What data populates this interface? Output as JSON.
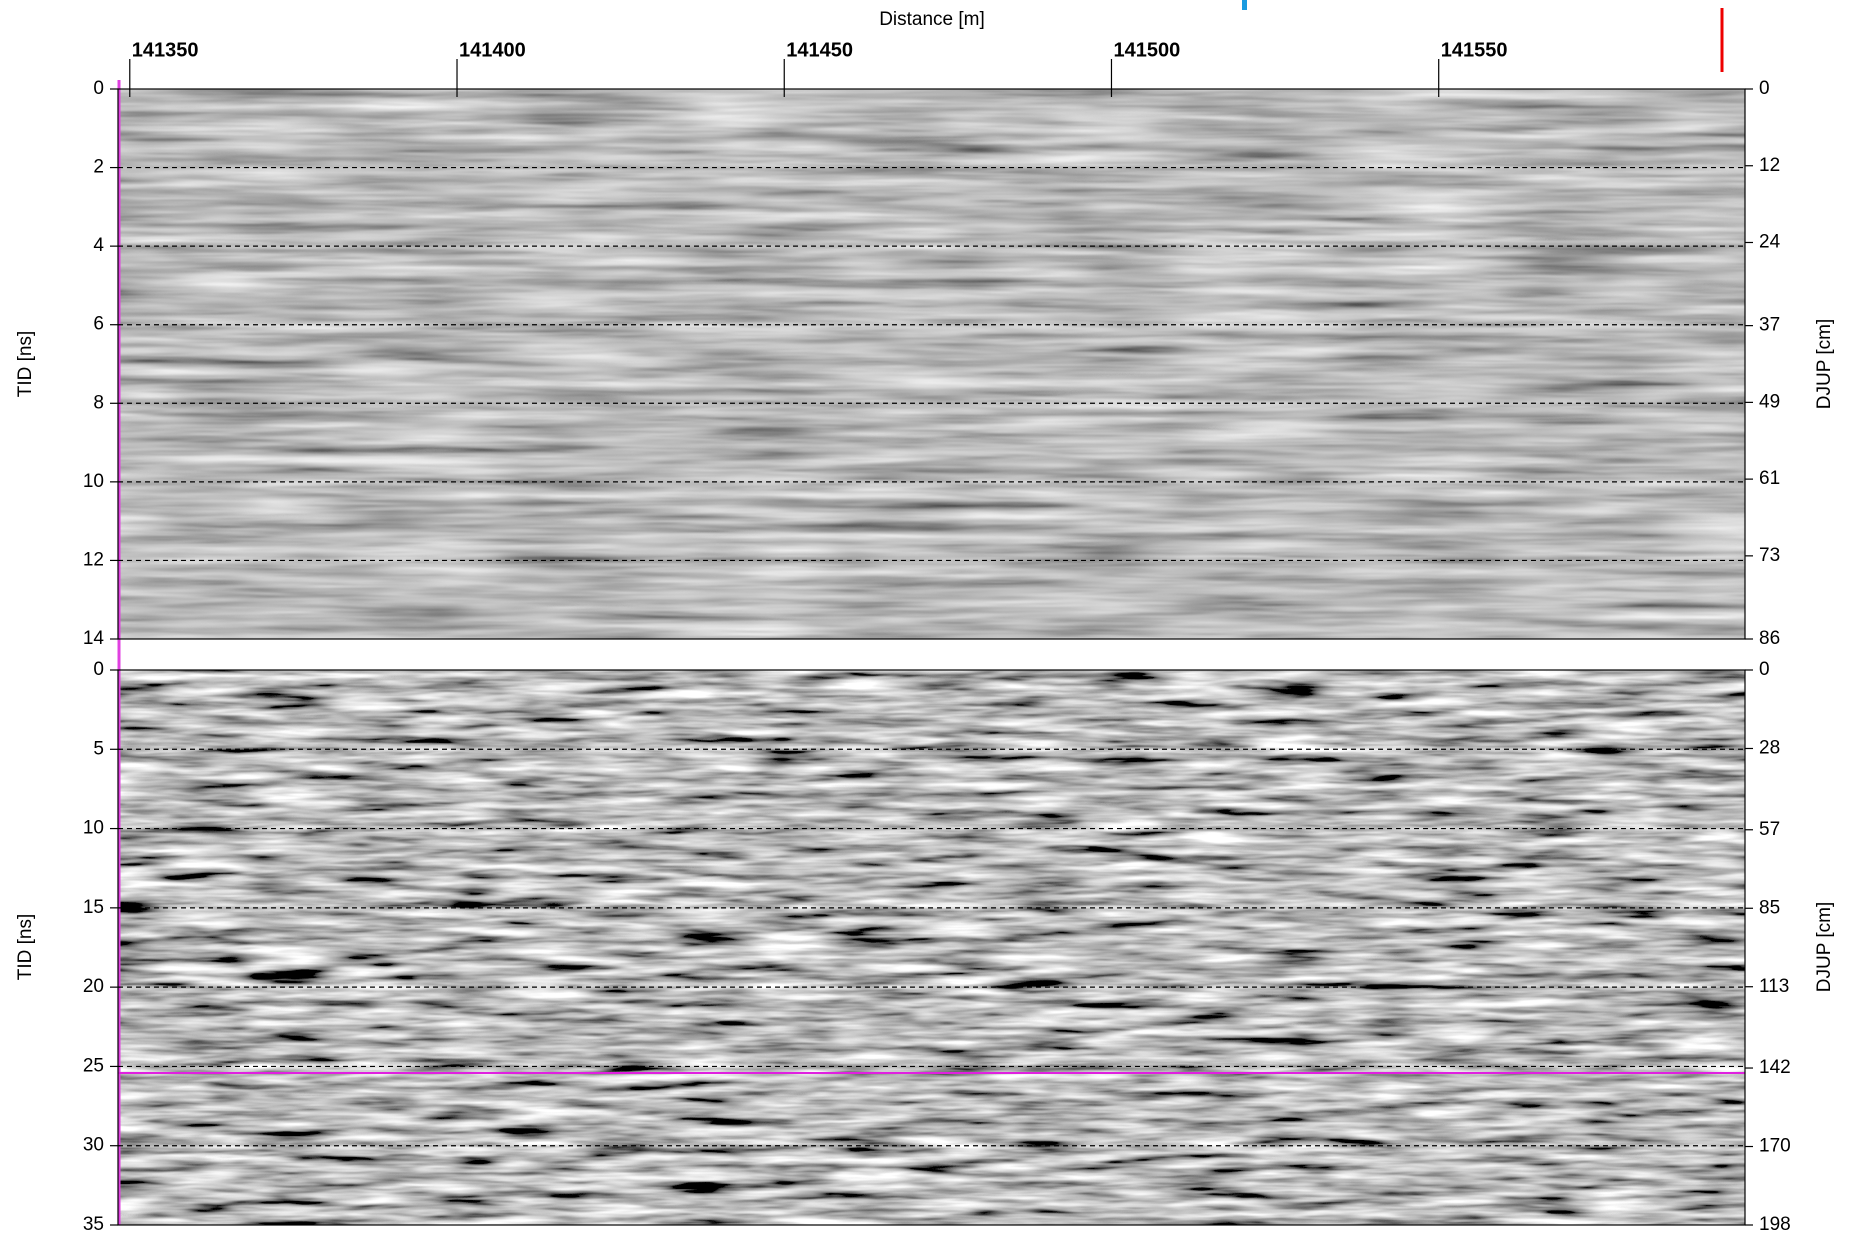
{
  "chart_data": [
    {
      "type": "radargram",
      "xlabel": "Distance [m]",
      "ylabel": "TID [ns]",
      "y2label": "DJUP [cm]",
      "xlim": [
        141348.2,
        141596.8
      ],
      "xticks": [
        141350,
        141400,
        141450,
        141500,
        141550
      ],
      "ylim": [
        0,
        14
      ],
      "yticks": [
        0,
        2,
        4,
        6,
        8,
        10,
        12,
        14
      ],
      "y2lim": [
        0,
        86
      ],
      "y2ticks": [
        0,
        12,
        24,
        37,
        49,
        61,
        73,
        86
      ],
      "grid": true
    },
    {
      "type": "radargram",
      "ylabel": "TID [ns]",
      "y2label": "DJUP [cm]",
      "xlim": [
        141348.2,
        141596.8
      ],
      "ylim": [
        0,
        35
      ],
      "yticks": [
        0,
        5,
        10,
        15,
        20,
        25,
        30,
        35
      ],
      "y2lim": [
        0,
        198
      ],
      "y2ticks": [
        0,
        28,
        57,
        85,
        113,
        142,
        170,
        198
      ],
      "grid": true
    }
  ]
}
